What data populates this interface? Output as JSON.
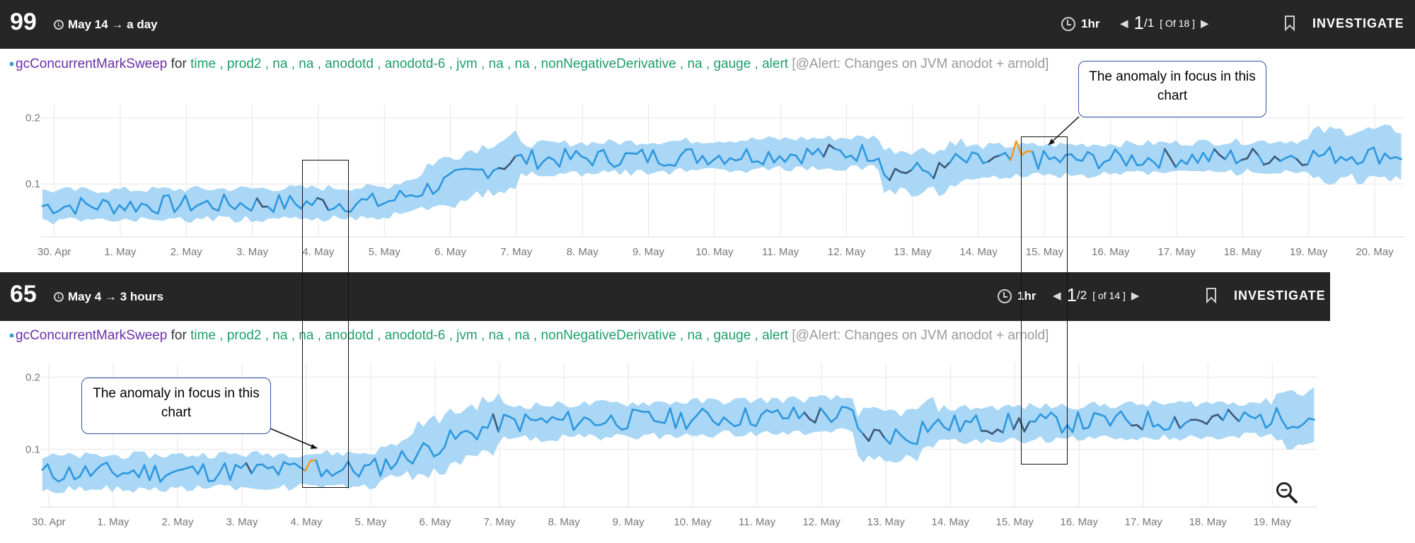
{
  "alerts": [
    {
      "score": "99",
      "time_range": "May 14 → a day",
      "resolution": "1hr",
      "pager_current": "1",
      "pager_total": "/1",
      "pager_of": "[ Of 18 ]",
      "investigate_label": "INVESTIGATE",
      "title": {
        "metric": "gcConcurrentMarkSweep",
        "for_word": "for",
        "properties": "time , prod2 , na , na , anodotd , anodotd-6 , jvm , na , na , nonNegativeDerivative , na , gauge , alert",
        "alert_name": "[@Alert: Changes on JVM anodot + arnold]"
      },
      "chart_data": {
        "type": "line",
        "x_ticks": [
          "30. Apr",
          "1. May",
          "2. May",
          "3. May",
          "4. May",
          "5. May",
          "6. May",
          "7. May",
          "8. May",
          "9. May",
          "10. May",
          "11. May",
          "12. May",
          "13. May",
          "14. May",
          "15. May",
          "16. May",
          "17. May",
          "18. May",
          "19. May",
          "20. May"
        ],
        "y_ticks": [
          "0.1",
          "0.2"
        ],
        "ylim": [
          0.02,
          0.22
        ],
        "xrange_days": [
          -0.2,
          20.45
        ],
        "anomaly_in_focus": "15. May",
        "colors": {
          "line": "#2e97df",
          "band": "#a9d7f5",
          "anomaly": "#f29a21",
          "past_anomaly": "#3d5878"
        }
      },
      "callout": "The anomaly in focus in this chart"
    },
    {
      "score": "65",
      "time_range": "May 4 → 3 hours",
      "resolution": "1hr",
      "pager_current": "1",
      "pager_total": "/2",
      "pager_of": "[ of 14 ]",
      "investigate_label": "INVESTIGATE",
      "title": {
        "metric": "gcConcurrentMarkSweep",
        "for_word": "for",
        "properties": "time , prod2 , na , na , anodotd , anodotd-6 , jvm , na , na , nonNegativeDerivative , na , gauge , alert",
        "alert_name": "[@Alert: Changes on JVM anodot + arnold]"
      },
      "chart_data": {
        "type": "line",
        "x_ticks": [
          "30. Apr",
          "1. May",
          "2. May",
          "3. May",
          "4. May",
          "5. May",
          "6. May",
          "7. May",
          "8. May",
          "9. May",
          "10. May",
          "11. May",
          "12. May",
          "13. May",
          "14. May",
          "15. May",
          "16. May",
          "17. May",
          "18. May",
          "19. May"
        ],
        "y_ticks": [
          "0.1",
          "0.2"
        ],
        "ylim": [
          0.02,
          0.22
        ],
        "xrange_days": [
          -0.12,
          19.7
        ],
        "anomaly_in_focus": "4. May",
        "colors": {
          "line": "#2e97df",
          "band": "#a9d7f5",
          "anomaly": "#f29a21",
          "past_anomaly": "#3d5878"
        }
      },
      "callout": "The anomaly in focus in this chart",
      "zoom_icon": "zoom-out-icon"
    }
  ]
}
